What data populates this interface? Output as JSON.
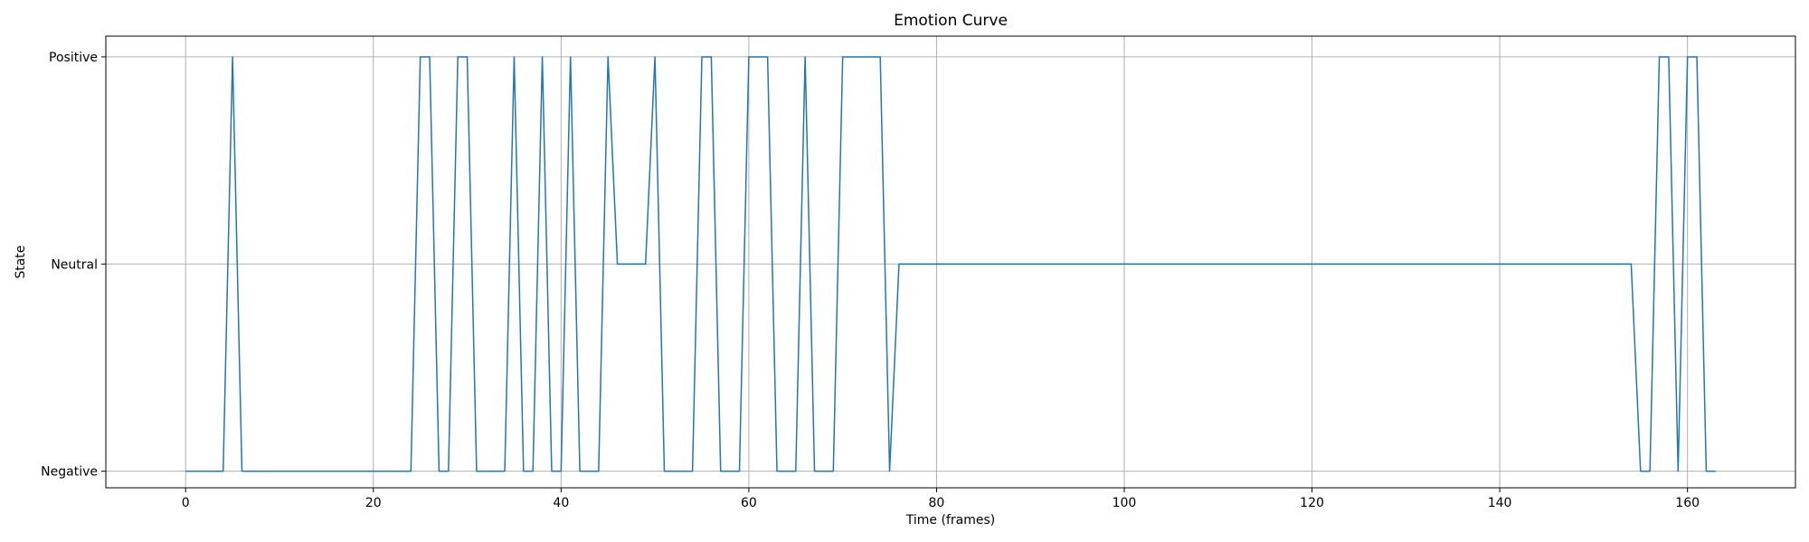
{
  "chart_data": {
    "type": "line",
    "title": "Emotion Curve",
    "xlabel": "Time (frames)",
    "ylabel": "State",
    "xlim": [
      -8.5,
      171.5
    ],
    "ylim": [
      -0.08,
      2.1
    ],
    "x_ticks": [
      0,
      20,
      40,
      60,
      80,
      100,
      120,
      140,
      160
    ],
    "y_ticks": [
      0,
      1,
      2
    ],
    "y_tick_labels": [
      "Negative",
      "Neutral",
      "Positive"
    ],
    "grid": true,
    "legend": "none",
    "series_color": "#1f77b4",
    "series": [
      {
        "x": [
          0,
          1,
          2,
          3,
          4,
          5,
          6,
          7,
          8,
          9,
          10,
          11,
          12,
          13,
          14,
          15,
          16,
          17,
          18,
          19,
          20,
          21,
          22,
          23,
          24,
          25,
          26,
          27,
          28,
          29,
          30,
          31,
          32,
          33,
          34,
          35,
          36,
          37,
          38,
          39,
          40,
          41,
          42,
          43,
          44,
          45,
          46,
          47,
          48,
          49,
          50,
          51,
          52,
          53,
          54,
          55,
          56,
          57,
          58,
          59,
          60,
          61,
          62,
          63,
          64,
          65,
          66,
          67,
          68,
          69,
          70,
          71,
          72,
          73,
          74,
          75,
          76,
          77,
          78,
          79,
          80,
          81,
          82,
          83,
          84,
          85,
          86,
          87,
          88,
          89,
          90,
          91,
          92,
          93,
          94,
          95,
          96,
          97,
          98,
          99,
          100,
          101,
          102,
          103,
          104,
          105,
          106,
          107,
          108,
          109,
          110,
          111,
          112,
          113,
          114,
          115,
          116,
          117,
          118,
          119,
          120,
          121,
          122,
          123,
          124,
          125,
          126,
          127,
          128,
          129,
          130,
          131,
          132,
          133,
          134,
          135,
          136,
          137,
          138,
          139,
          140,
          141,
          142,
          143,
          144,
          145,
          146,
          147,
          148,
          149,
          150,
          151,
          152,
          153,
          154,
          155,
          156,
          157,
          158,
          159,
          160,
          161,
          162,
          163
        ],
        "y": [
          0,
          0,
          0,
          0,
          0,
          2,
          0,
          0,
          0,
          0,
          0,
          0,
          0,
          0,
          0,
          0,
          0,
          0,
          0,
          0,
          0,
          0,
          0,
          0,
          0,
          2,
          2,
          0,
          0,
          2,
          2,
          0,
          0,
          0,
          0,
          2,
          0,
          0,
          2,
          0,
          0,
          2,
          0,
          0,
          0,
          2,
          1,
          1,
          1,
          1,
          2,
          0,
          0,
          0,
          0,
          2,
          2,
          0,
          0,
          0,
          2,
          2,
          2,
          0,
          0,
          0,
          2,
          0,
          0,
          0,
          2,
          2,
          2,
          2,
          2,
          0,
          1,
          1,
          1,
          1,
          1,
          1,
          1,
          1,
          1,
          1,
          1,
          1,
          1,
          1,
          1,
          1,
          1,
          1,
          1,
          1,
          1,
          1,
          1,
          1,
          1,
          1,
          1,
          1,
          1,
          1,
          1,
          1,
          1,
          1,
          1,
          1,
          1,
          1,
          1,
          1,
          1,
          1,
          1,
          1,
          1,
          1,
          1,
          1,
          1,
          1,
          1,
          1,
          1,
          1,
          1,
          1,
          1,
          1,
          1,
          1,
          1,
          1,
          1,
          1,
          1,
          1,
          1,
          1,
          1,
          1,
          1,
          1,
          1,
          1,
          1,
          1,
          1,
          1,
          1,
          0,
          0,
          2,
          2,
          0,
          2,
          2,
          0,
          0
        ]
      }
    ]
  }
}
